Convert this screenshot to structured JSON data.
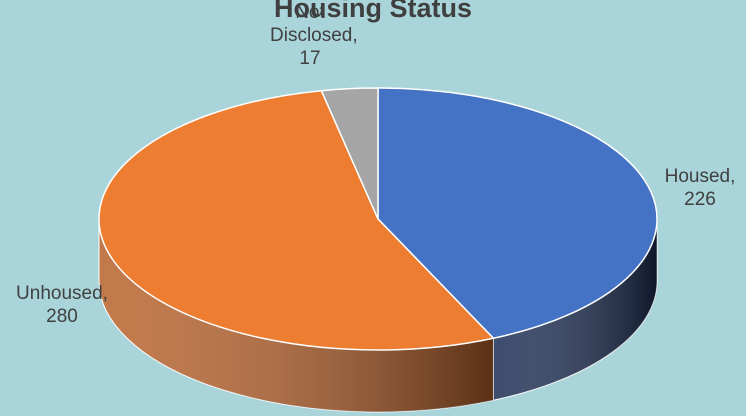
{
  "chart_data": {
    "type": "pie",
    "title": "Housing Status",
    "categories": [
      "Housed",
      "Unhoused",
      "Not Disclosed"
    ],
    "values": [
      226,
      280,
      17
    ],
    "colors": [
      "#4472c4",
      "#ed7d31",
      "#a5a5a5"
    ],
    "side_colors": [
      "#1c2e55",
      "#b8612a",
      "#6e6e6e"
    ],
    "start_angle": 0,
    "direction": "clockwise",
    "three_d": true
  }
}
